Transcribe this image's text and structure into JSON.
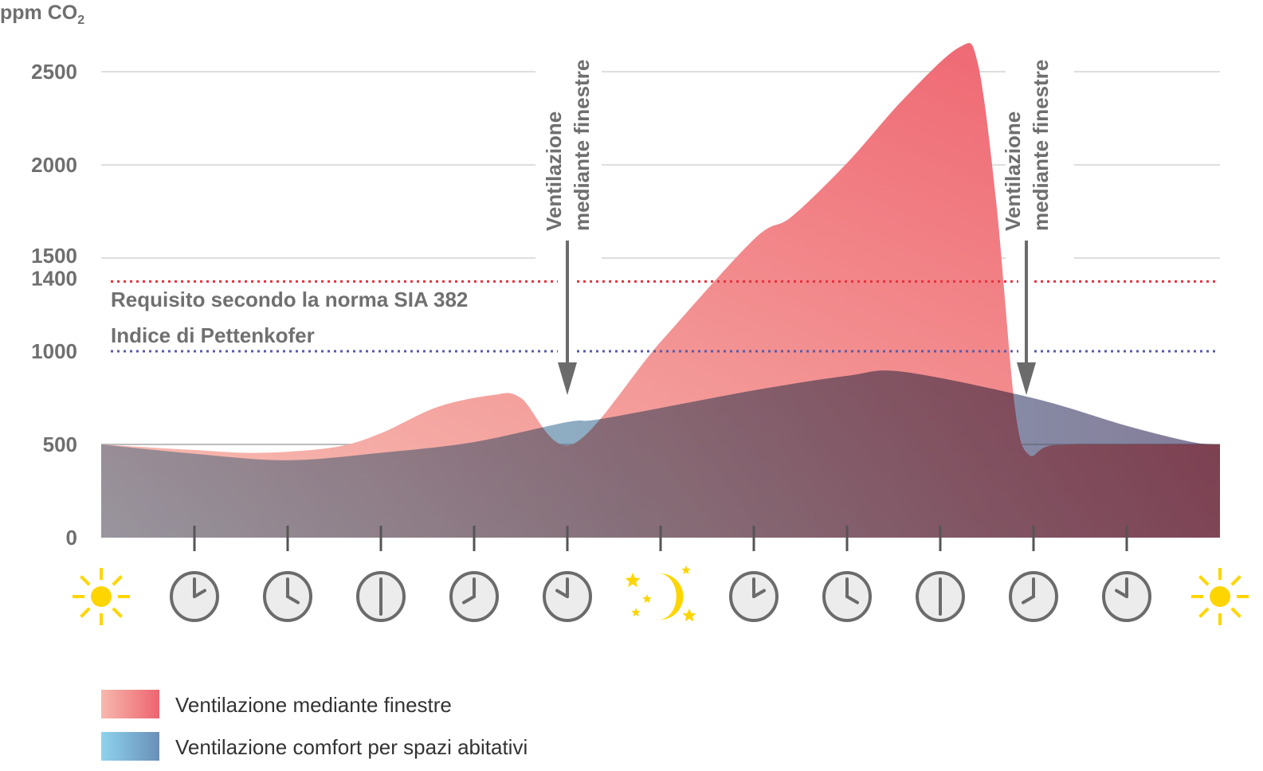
{
  "chart_data": {
    "type": "area",
    "ylabel": "ppm CO",
    "ylabel_subscript": "2",
    "ylim": [
      0,
      2700
    ],
    "xlim": [
      0,
      12
    ],
    "yticks": [
      0,
      500,
      1000,
      1400,
      1500,
      2000,
      2500
    ],
    "gridlines": [
      500,
      1500,
      2000,
      2500
    ],
    "grid": true,
    "reference_lines": [
      {
        "value": 1400,
        "label": "Requisito secondo la norma SIA 382",
        "color": "#e8323c"
      },
      {
        "value": 1000,
        "label": "Indice di Pettenkofer",
        "color": "#5a5aa8"
      }
    ],
    "annotations": [
      {
        "x": 5,
        "line1": "Ventilazione",
        "line2": "mediante finestre"
      },
      {
        "x": 9.92,
        "line1": "Ventilazione",
        "line2": "mediante finestre"
      }
    ],
    "x_icons": [
      {
        "type": "sun"
      },
      {
        "type": "clock",
        "hour": 2
      },
      {
        "type": "clock",
        "hour": 4
      },
      {
        "type": "clock",
        "hour": 6
      },
      {
        "type": "clock",
        "hour": 8
      },
      {
        "type": "clock",
        "hour": 10
      },
      {
        "type": "moon"
      },
      {
        "type": "clock",
        "hour": 2
      },
      {
        "type": "clock",
        "hour": 4
      },
      {
        "type": "clock",
        "hour": 6
      },
      {
        "type": "clock",
        "hour": 8
      },
      {
        "type": "clock",
        "hour": 10
      },
      {
        "type": "sun"
      }
    ],
    "series": [
      {
        "name": "Ventilazione mediante finestre",
        "color_start": "#f7b8ad",
        "color_end": "#ee6470",
        "points": [
          [
            0,
            500
          ],
          [
            1,
            470
          ],
          [
            1.7,
            455
          ],
          [
            2.5,
            485
          ],
          [
            3,
            560
          ],
          [
            3.6,
            700
          ],
          [
            4.2,
            765
          ],
          [
            4.5,
            750
          ],
          [
            5.05,
            500
          ],
          [
            6,
            1050
          ],
          [
            7,
            1600
          ],
          [
            7.4,
            1720
          ],
          [
            8,
            2010
          ],
          [
            8.6,
            2350
          ],
          [
            9.2,
            2630
          ],
          [
            9.4,
            2550
          ],
          [
            9.6,
            1800
          ],
          [
            9.8,
            700
          ],
          [
            9.95,
            445
          ],
          [
            10.2,
            495
          ],
          [
            11,
            500
          ],
          [
            12,
            500
          ]
        ]
      },
      {
        "name": "Ventilazione comfort per spazi abitativi",
        "color_start": "#8ed3ee",
        "color_end": "#6a8fb8",
        "points": [
          [
            0,
            500
          ],
          [
            1,
            450
          ],
          [
            2,
            415
          ],
          [
            3,
            455
          ],
          [
            4,
            513
          ],
          [
            5,
            620
          ],
          [
            5.4,
            640
          ],
          [
            7,
            790
          ],
          [
            8,
            868
          ],
          [
            8.6,
            890
          ],
          [
            10,
            748
          ],
          [
            11,
            600
          ],
          [
            11.7,
            513
          ],
          [
            12,
            500
          ]
        ]
      }
    ]
  }
}
